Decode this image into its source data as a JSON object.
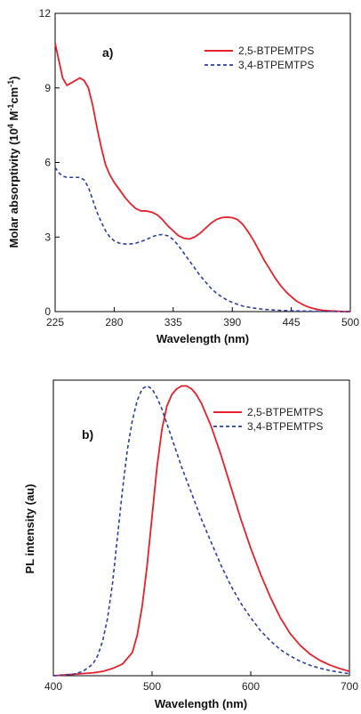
{
  "chart_data": [
    {
      "type": "line",
      "panel_label": "a)",
      "xlabel": "Wavelength (nm)",
      "ylabel": "Molar absorptivity (10",
      "ylabel_sup1": "4",
      "ylabel_mid": " M",
      "ylabel_sup2": "-1",
      "ylabel_mid2": "cm",
      "ylabel_sup3": "-1",
      "ylabel_end": ")",
      "xlim": [
        225,
        500
      ],
      "ylim": [
        0,
        12
      ],
      "xticks": [
        225,
        280,
        335,
        390,
        445,
        500
      ],
      "xtick_labels": [
        "225",
        "280",
        "335",
        "390",
        "445",
        "500"
      ],
      "yticks": [
        0,
        3,
        6,
        9,
        12
      ],
      "ytick_labels": [
        "0",
        "3",
        "6",
        "9",
        "12"
      ],
      "legend_position": "top-right",
      "series": [
        {
          "name": "2,5-BTPEMTPS",
          "color": "#e8202a",
          "style": "solid",
          "x": [
            225,
            228,
            232,
            236,
            240,
            244,
            248,
            252,
            256,
            260,
            264,
            268,
            272,
            276,
            280,
            285,
            290,
            295,
            300,
            305,
            310,
            315,
            320,
            325,
            330,
            335,
            340,
            345,
            350,
            355,
            360,
            365,
            370,
            375,
            380,
            385,
            390,
            395,
            400,
            405,
            410,
            415,
            420,
            425,
            430,
            435,
            440,
            445,
            450,
            455,
            460,
            465,
            470,
            475,
            480,
            485,
            490,
            495,
            500
          ],
          "y": [
            10.8,
            10.2,
            9.4,
            9.1,
            9.2,
            9.3,
            9.4,
            9.3,
            9.0,
            8.3,
            7.4,
            6.6,
            5.9,
            5.5,
            5.2,
            4.9,
            4.6,
            4.35,
            4.15,
            4.05,
            4.05,
            4.0,
            3.9,
            3.7,
            3.45,
            3.25,
            3.05,
            2.95,
            2.92,
            3.0,
            3.15,
            3.35,
            3.55,
            3.7,
            3.78,
            3.8,
            3.78,
            3.7,
            3.5,
            3.2,
            2.85,
            2.45,
            2.05,
            1.7,
            1.35,
            1.05,
            0.8,
            0.6,
            0.42,
            0.3,
            0.2,
            0.13,
            0.08,
            0.05,
            0.03,
            0.02,
            0.01,
            0.0,
            0.0
          ]
        },
        {
          "name": "3,4-BTPEMTPS",
          "color": "#2a3f9e",
          "style": "dashed",
          "x": [
            225,
            228,
            232,
            236,
            240,
            244,
            248,
            252,
            256,
            260,
            264,
            268,
            272,
            276,
            280,
            285,
            290,
            295,
            300,
            305,
            310,
            315,
            320,
            325,
            330,
            335,
            340,
            345,
            350,
            355,
            360,
            365,
            370,
            375,
            380,
            385,
            390,
            395,
            400,
            410,
            420,
            430,
            440,
            450,
            460,
            470,
            480,
            490,
            500
          ],
          "y": [
            5.8,
            5.6,
            5.45,
            5.4,
            5.4,
            5.4,
            5.4,
            5.3,
            5.0,
            4.5,
            4.0,
            3.6,
            3.25,
            3.0,
            2.85,
            2.75,
            2.72,
            2.72,
            2.75,
            2.82,
            2.9,
            3.0,
            3.08,
            3.1,
            3.05,
            2.9,
            2.65,
            2.35,
            2.05,
            1.75,
            1.45,
            1.2,
            0.95,
            0.75,
            0.6,
            0.47,
            0.37,
            0.29,
            0.22,
            0.14,
            0.09,
            0.06,
            0.04,
            0.03,
            0.02,
            0.01,
            0.01,
            0.0,
            0.0
          ]
        }
      ]
    },
    {
      "type": "line",
      "panel_label": "b)",
      "xlabel": "Wavelength (nm)",
      "ylabel": "PL intensity (au)",
      "xlim": [
        400,
        700
      ],
      "ylim": [
        0,
        1.02
      ],
      "xticks": [
        400,
        500,
        600,
        700
      ],
      "xtick_labels": [
        "400",
        "500",
        "600",
        "700"
      ],
      "legend_position": "top-right",
      "series": [
        {
          "name": "2,5-BTPEMTPS",
          "color": "#e8202a",
          "style": "solid",
          "x": [
            400,
            420,
            440,
            450,
            460,
            470,
            480,
            485,
            490,
            495,
            500,
            505,
            510,
            515,
            520,
            525,
            530,
            535,
            540,
            545,
            550,
            560,
            570,
            580,
            590,
            600,
            610,
            620,
            630,
            640,
            650,
            660,
            670,
            680,
            690,
            700
          ],
          "y": [
            0.0,
            0.005,
            0.01,
            0.015,
            0.025,
            0.04,
            0.08,
            0.14,
            0.24,
            0.38,
            0.55,
            0.72,
            0.85,
            0.93,
            0.97,
            0.99,
            1.0,
            1.0,
            0.99,
            0.97,
            0.94,
            0.86,
            0.76,
            0.65,
            0.54,
            0.44,
            0.35,
            0.27,
            0.2,
            0.145,
            0.105,
            0.075,
            0.053,
            0.037,
            0.025,
            0.015
          ]
        },
        {
          "name": "3,4-BTPEMTPS",
          "color": "#2a3f9e",
          "style": "dashed",
          "x": [
            400,
            420,
            430,
            440,
            445,
            450,
            455,
            460,
            465,
            470,
            475,
            480,
            485,
            490,
            495,
            500,
            505,
            510,
            515,
            520,
            525,
            530,
            540,
            550,
            560,
            570,
            580,
            590,
            600,
            610,
            620,
            630,
            640,
            650,
            660,
            670,
            680,
            690,
            700
          ],
          "y": [
            0.0,
            0.005,
            0.015,
            0.04,
            0.07,
            0.12,
            0.2,
            0.32,
            0.48,
            0.64,
            0.78,
            0.88,
            0.95,
            0.99,
            1.0,
            0.99,
            0.96,
            0.92,
            0.87,
            0.82,
            0.77,
            0.72,
            0.63,
            0.54,
            0.46,
            0.38,
            0.31,
            0.25,
            0.2,
            0.155,
            0.12,
            0.09,
            0.068,
            0.05,
            0.036,
            0.026,
            0.018,
            0.012,
            0.007
          ]
        }
      ]
    }
  ]
}
